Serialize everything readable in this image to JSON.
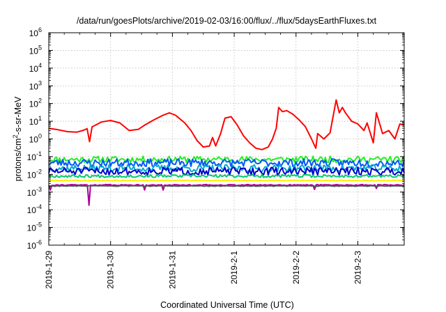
{
  "chart_data": {
    "type": "line",
    "title": "/data/run/goesPlots/archive/2019-02-03/16:00/flux/../flux/5daysEarthFluxes.txt",
    "xlabel": "Coordinated Universal Time (UTC)",
    "ylabel": {
      "pre": "protons/cm",
      "sup": "2",
      "post": "-s-sr-MeV"
    },
    "yscale": "log",
    "ylim_exp": [
      -6,
      6
    ],
    "ytick_labels": [
      {
        "base": "10",
        "exp": "-6"
      },
      {
        "base": "10",
        "exp": "-5"
      },
      {
        "base": "10",
        "exp": "-4"
      },
      {
        "base": "10",
        "exp": "-3"
      },
      {
        "base": "10",
        "exp": "-2"
      },
      {
        "base": "10",
        "exp": "-1"
      },
      {
        "base": "10",
        "exp": "0"
      },
      {
        "base": "10",
        "exp": "1"
      },
      {
        "base": "10",
        "exp": "2"
      },
      {
        "base": "10",
        "exp": "3"
      },
      {
        "base": "10",
        "exp": "4"
      },
      {
        "base": "10",
        "exp": "5"
      },
      {
        "base": "10",
        "exp": "6"
      }
    ],
    "x_range_days": [
      0,
      5.75
    ],
    "xtick_labels": [
      {
        "label": "2019-1-29",
        "day": 0
      },
      {
        "label": "2019-1-30",
        "day": 1
      },
      {
        "label": "2019-1-31",
        "day": 2
      },
      {
        "label": "2019-2-1",
        "day": 3
      },
      {
        "label": "2019-2-2",
        "day": 4
      },
      {
        "label": "2019-2-3",
        "day": 5
      }
    ],
    "grid": true,
    "series": [
      {
        "color": "#ff0000",
        "points": [
          [
            0.0,
            4.0
          ],
          [
            0.15,
            3.3
          ],
          [
            0.3,
            2.6
          ],
          [
            0.45,
            2.4
          ],
          [
            0.55,
            3.0
          ],
          [
            0.62,
            3.8
          ],
          [
            0.66,
            0.7
          ],
          [
            0.7,
            4.8
          ],
          [
            0.85,
            9.0
          ],
          [
            1.0,
            11.0
          ],
          [
            1.15,
            8.0
          ],
          [
            1.3,
            3.0
          ],
          [
            1.45,
            3.5
          ],
          [
            1.55,
            6.0
          ],
          [
            1.7,
            12.0
          ],
          [
            1.85,
            22.0
          ],
          [
            1.95,
            30.0
          ],
          [
            2.05,
            22.0
          ],
          [
            2.2,
            8.0
          ],
          [
            2.3,
            3.0
          ],
          [
            2.4,
            0.8
          ],
          [
            2.5,
            0.35
          ],
          [
            2.6,
            0.4
          ],
          [
            2.65,
            1.2
          ],
          [
            2.7,
            0.4
          ],
          [
            2.78,
            2.0
          ],
          [
            2.85,
            15.0
          ],
          [
            2.95,
            18.0
          ],
          [
            3.05,
            6.0
          ],
          [
            3.15,
            1.5
          ],
          [
            3.25,
            0.6
          ],
          [
            3.35,
            0.3
          ],
          [
            3.45,
            0.25
          ],
          [
            3.55,
            0.35
          ],
          [
            3.62,
            1.0
          ],
          [
            3.68,
            4.0
          ],
          [
            3.72,
            60.0
          ],
          [
            3.78,
            35.0
          ],
          [
            3.85,
            40.0
          ],
          [
            3.95,
            25.0
          ],
          [
            4.05,
            12.0
          ],
          [
            4.15,
            5.0
          ],
          [
            4.25,
            1.0
          ],
          [
            4.32,
            0.3
          ],
          [
            4.35,
            2.0
          ],
          [
            4.45,
            1.0
          ],
          [
            4.55,
            2.2
          ],
          [
            4.65,
            160.0
          ],
          [
            4.7,
            30.0
          ],
          [
            4.75,
            60.0
          ],
          [
            4.8,
            30.0
          ],
          [
            4.9,
            10.0
          ],
          [
            5.0,
            7.0
          ],
          [
            5.1,
            3.0
          ],
          [
            5.15,
            8.0
          ],
          [
            5.25,
            0.6
          ],
          [
            5.3,
            30.0
          ],
          [
            5.4,
            2.0
          ],
          [
            5.5,
            3.0
          ],
          [
            5.6,
            1.0
          ],
          [
            5.68,
            7.0
          ],
          [
            5.75,
            6.0
          ]
        ]
      },
      {
        "color": "#22ee22",
        "base": 0.07,
        "amp": 0.18,
        "seed": 11
      },
      {
        "color": "#0055ff",
        "base": 0.045,
        "amp": 0.22,
        "seed": 23
      },
      {
        "color": "#00aacc",
        "base": 0.022,
        "amp": 0.2,
        "seed": 37
      },
      {
        "color": "#0000cc",
        "base": 0.015,
        "amp": 0.22,
        "seed": 51
      },
      {
        "color": "#00cc66",
        "base": 0.008,
        "amp": 0.08,
        "seed": 67
      },
      {
        "color": "#ffee00",
        "base": 0.0045,
        "amp": 0.02,
        "seed": 79
      },
      {
        "color": "#aa0099",
        "base": 0.0025,
        "amp": 0.03,
        "seed": 91,
        "dips": [
          [
            0.03,
            0.0013
          ],
          [
            0.66,
            0.00018
          ],
          [
            1.55,
            0.0013
          ],
          [
            1.85,
            0.0013
          ],
          [
            4.3,
            0.0014
          ],
          [
            5.3,
            0.0016
          ]
        ]
      },
      {
        "color": "#555555",
        "base": 0.0022,
        "amp": 0.02,
        "seed": 103
      }
    ]
  }
}
